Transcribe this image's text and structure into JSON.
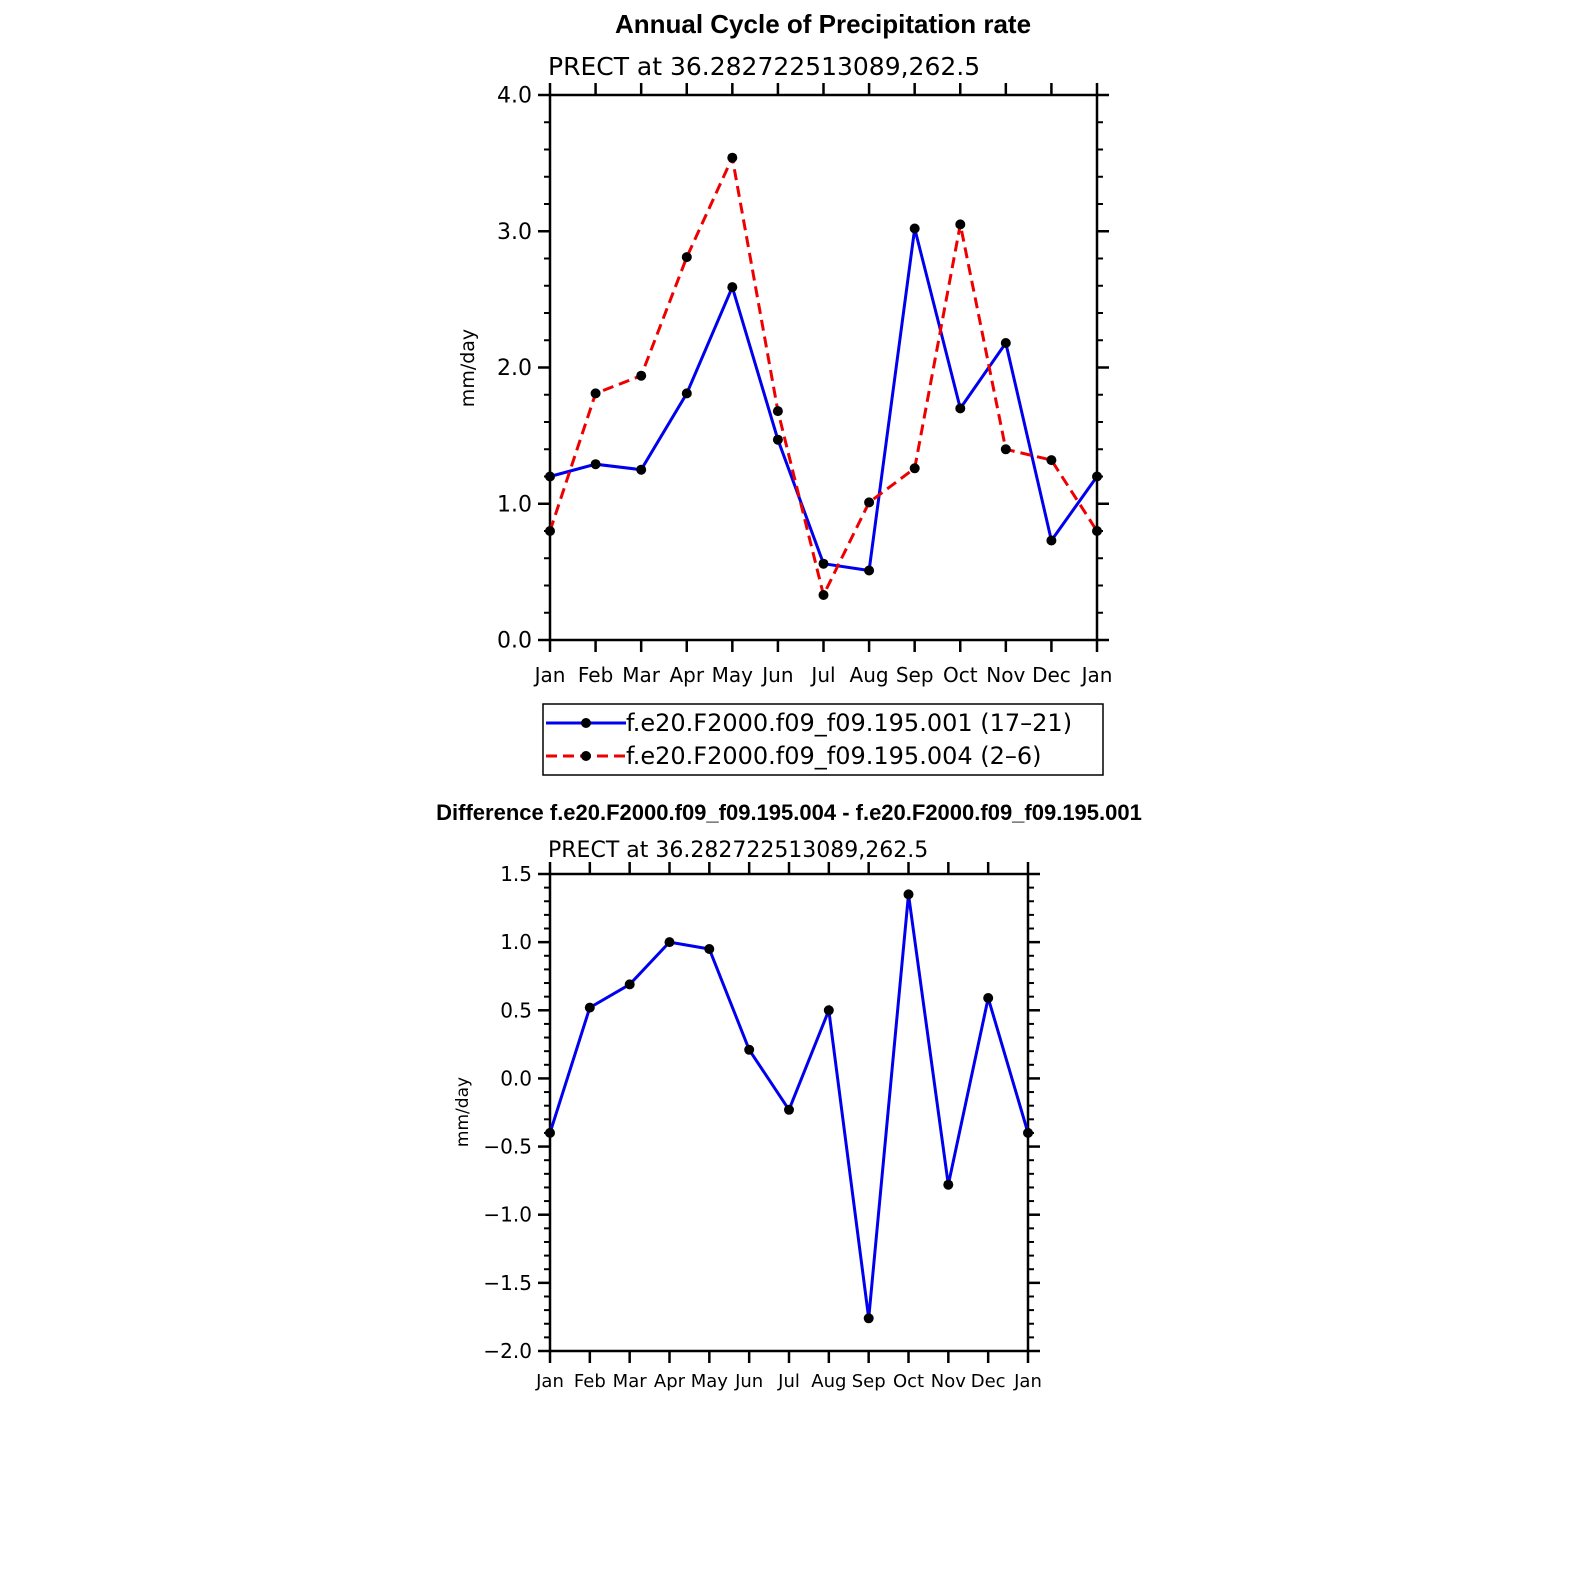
{
  "chart_data": [
    {
      "type": "line",
      "title": "Annual Cycle of Precipitation rate",
      "subtitle": "PRECT at 36.282722513089,262.5",
      "xlabel": "",
      "ylabel": "mm/day",
      "categories": [
        "Jan",
        "Feb",
        "Mar",
        "Apr",
        "May",
        "Jun",
        "Jul",
        "Aug",
        "Sep",
        "Oct",
        "Nov",
        "Dec",
        "Jan"
      ],
      "ylim": [
        0.0,
        4.0
      ],
      "yticks": [
        "0.0",
        "1.0",
        "2.0",
        "3.0",
        "4.0"
      ],
      "grid": false,
      "legend_position": "bottom",
      "series": [
        {
          "name": "f.e20.F2000.f09_f09.195.001 (17–21)",
          "color": "#0000ee",
          "dash": "solid",
          "values": [
            1.2,
            1.29,
            1.25,
            1.81,
            2.59,
            1.47,
            0.56,
            0.51,
            3.02,
            1.7,
            2.18,
            0.73,
            1.2
          ]
        },
        {
          "name": "f.e20.F2000.f09_f09.195.004 (2–6)",
          "color": "#ee0000",
          "dash": "dashed",
          "values": [
            0.8,
            1.81,
            1.94,
            2.81,
            3.54,
            1.68,
            0.33,
            1.01,
            1.26,
            3.05,
            1.4,
            1.32,
            0.8
          ]
        }
      ]
    },
    {
      "type": "line",
      "title": "Difference f.e20.F2000.f09_f09.195.004 - f.e20.F2000.f09_f09.195.001",
      "subtitle": "PRECT at 36.282722513089,262.5",
      "xlabel": "",
      "ylabel": "mm/day",
      "categories": [
        "Jan",
        "Feb",
        "Mar",
        "Apr",
        "May",
        "Jun",
        "Jul",
        "Aug",
        "Sep",
        "Oct",
        "Nov",
        "Dec",
        "Jan"
      ],
      "ylim": [
        -2.0,
        1.5
      ],
      "yticks": [
        "−2.0",
        "−1.5",
        "−1.0",
        "−0.5",
        "0.0",
        "0.5",
        "1.0",
        "1.5"
      ],
      "grid": false,
      "series": [
        {
          "color": "#0000ee",
          "dash": "solid",
          "values": [
            -0.4,
            0.52,
            0.69,
            1.0,
            0.95,
            0.21,
            -0.23,
            0.5,
            -1.76,
            1.35,
            -0.78,
            0.59,
            -0.4
          ]
        }
      ]
    }
  ]
}
